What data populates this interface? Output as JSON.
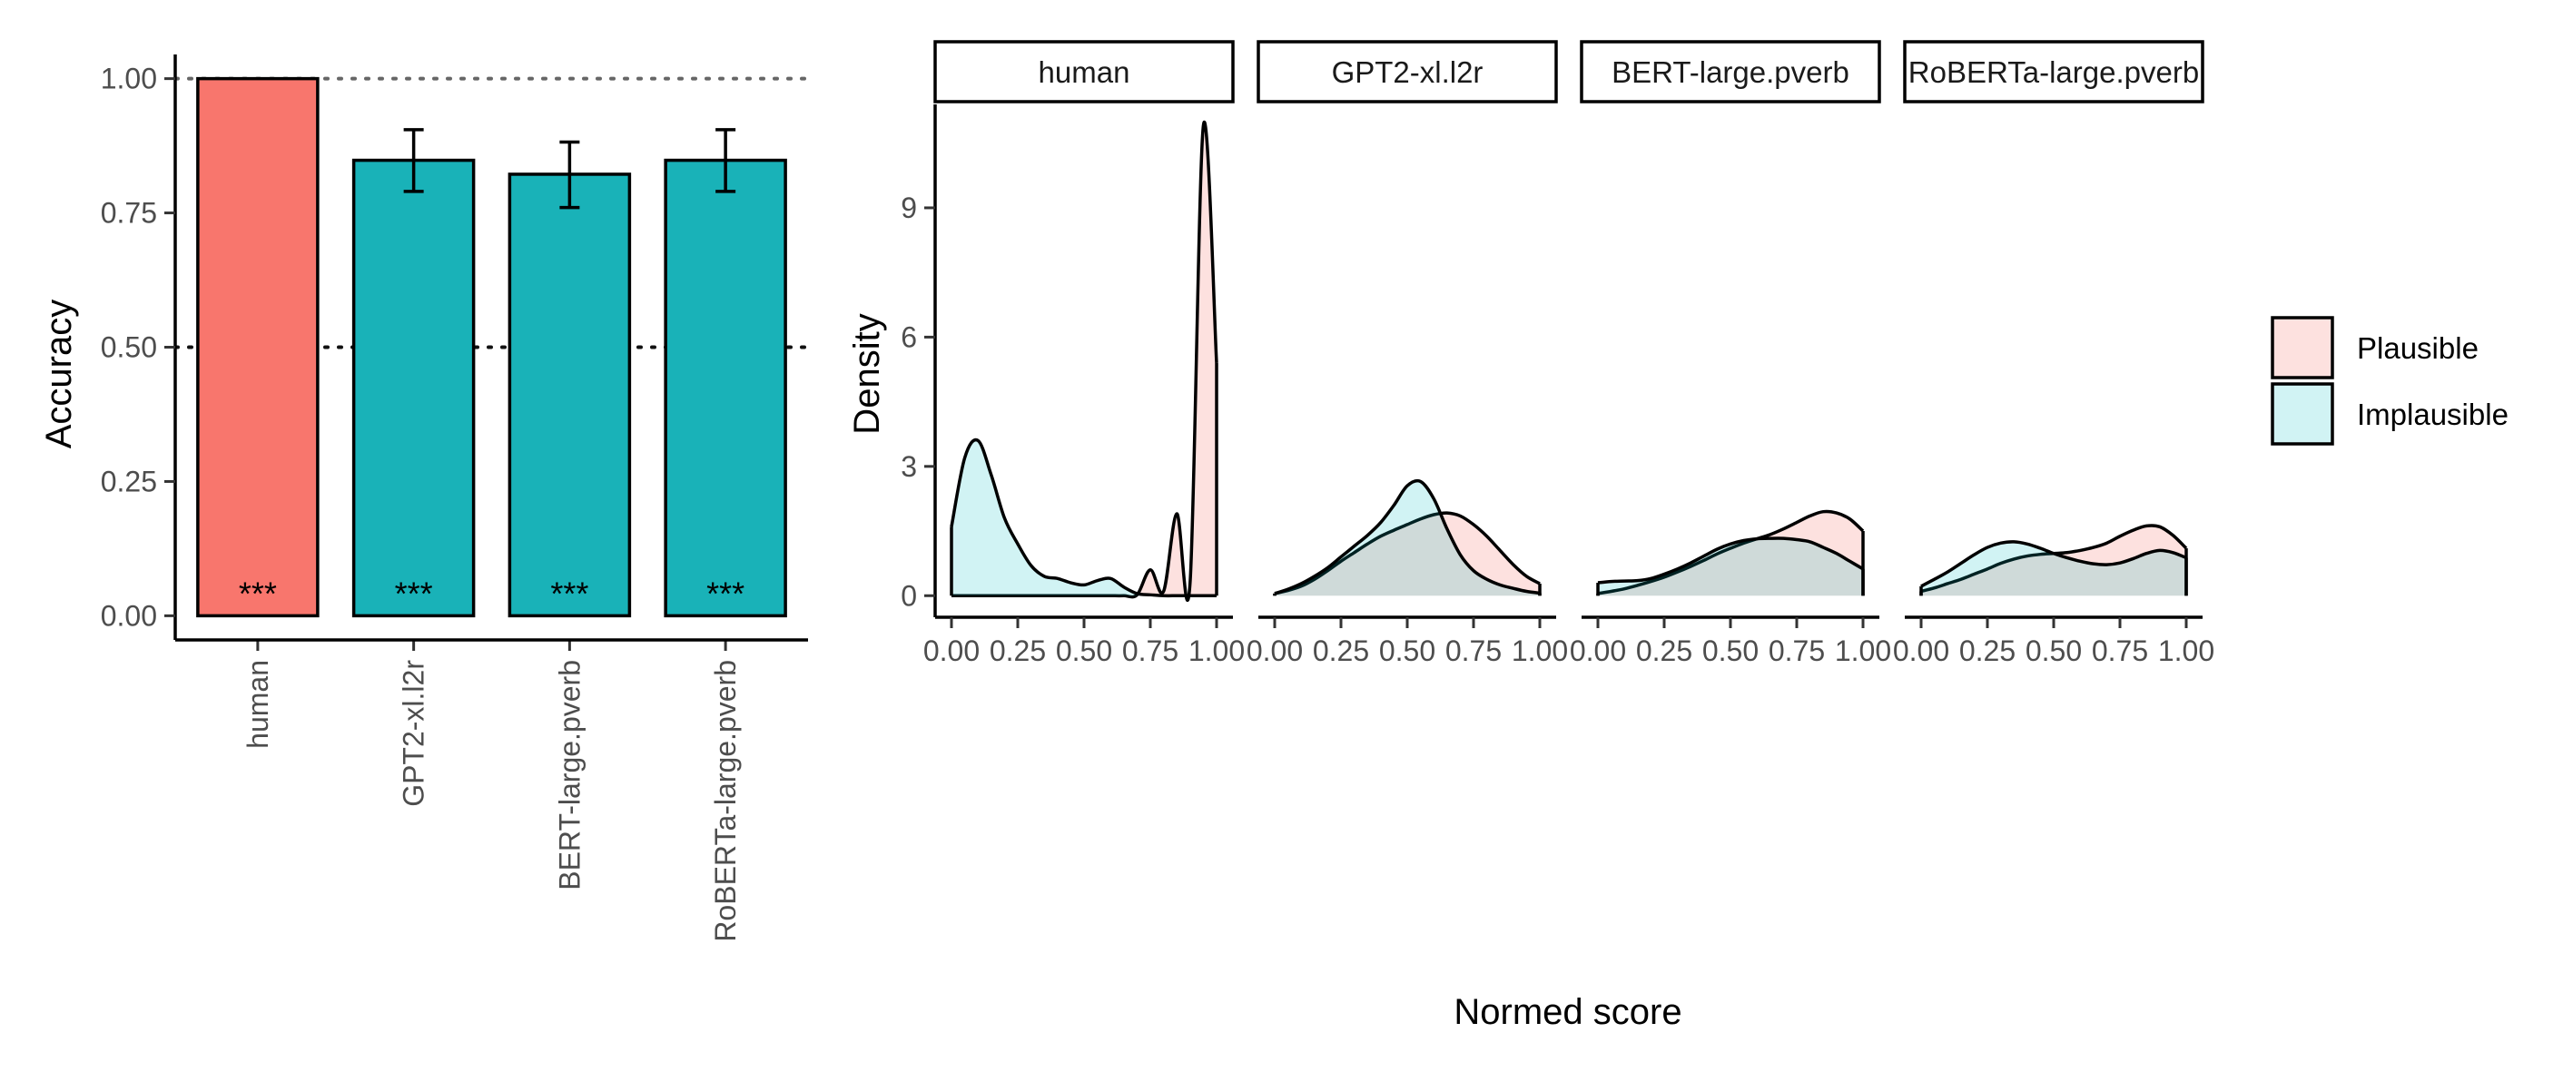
{
  "chart_data": [
    {
      "type": "bar",
      "categories": [
        "human",
        "GPT2-xl.l2r",
        "BERT-large.pverb",
        "RoBERTa-large.pverb"
      ],
      "values": [
        1.0,
        0.848,
        0.822,
        0.848
      ],
      "error_low": [
        1.0,
        0.79,
        0.76,
        0.79
      ],
      "error_high": [
        1.0,
        0.905,
        0.882,
        0.905
      ],
      "significance": [
        "***",
        "***",
        "***",
        "***"
      ],
      "bar_colors": [
        "#F8766D",
        "#19B2B8",
        "#19B2B8",
        "#19B2B8"
      ],
      "ylabel": "Accuracy",
      "xlabel": "",
      "ylim": [
        -0.045,
        1.045
      ],
      "yticks": [
        0.0,
        0.25,
        0.5,
        0.75,
        1.0
      ],
      "ytick_labels": [
        "0.00",
        "0.25",
        "0.50",
        "0.75",
        "1.00"
      ],
      "reference_lines": [
        1.0,
        0.5
      ]
    },
    {
      "type": "area",
      "panels": [
        "human",
        "GPT2-xl.l2r",
        "BERT-large.pverb",
        "RoBERTa-large.pverb"
      ],
      "xlabel": "Normed score",
      "ylabel": "Density",
      "xlim": [
        0,
        1
      ],
      "ylim": [
        -0.5,
        11.4
      ],
      "xticks": [
        0,
        0.25,
        0.5,
        0.75,
        1.0
      ],
      "xtick_labels": [
        "0.00",
        "0.25",
        "0.50",
        "0.75",
        "1.00"
      ],
      "yticks": [
        0,
        3,
        6,
        9
      ],
      "ytick_labels": [
        "0",
        "3",
        "6",
        "9"
      ],
      "legend": {
        "position": "right",
        "entries": [
          {
            "label": "Plausible",
            "color": "#F8766D"
          },
          {
            "label": "Implausible",
            "color": "#00BFC4"
          }
        ]
      },
      "series": [
        {
          "name": "Plausible",
          "x": [
            0,
            0.05,
            0.1,
            0.15,
            0.2,
            0.25,
            0.3,
            0.35,
            0.4,
            0.45,
            0.5,
            0.55,
            0.6,
            0.65,
            0.7,
            0.75,
            0.8,
            0.85,
            0.9,
            0.95,
            1.0
          ],
          "panel_values": [
            [
              0,
              0,
              0,
              0,
              0,
              0,
              0,
              0,
              0,
              0,
              0,
              0,
              0,
              0,
              0.02,
              0.6,
              0.1,
              1.9,
              0.3,
              10.9,
              5.4
            ],
            [
              0.05,
              0.12,
              0.22,
              0.38,
              0.58,
              0.8,
              1.0,
              1.2,
              1.38,
              1.52,
              1.65,
              1.78,
              1.88,
              1.92,
              1.85,
              1.65,
              1.38,
              1.05,
              0.72,
              0.45,
              0.28
            ],
            [
              0.05,
              0.1,
              0.16,
              0.24,
              0.33,
              0.43,
              0.55,
              0.68,
              0.82,
              0.97,
              1.1,
              1.22,
              1.32,
              1.42,
              1.55,
              1.7,
              1.85,
              1.95,
              1.92,
              1.78,
              1.5
            ],
            [
              0.1,
              0.18,
              0.28,
              0.38,
              0.5,
              0.62,
              0.75,
              0.85,
              0.92,
              0.96,
              0.98,
              1.0,
              1.05,
              1.12,
              1.22,
              1.38,
              1.52,
              1.62,
              1.6,
              1.4,
              1.1
            ]
          ]
        },
        {
          "name": "Implausible",
          "x": [
            0,
            0.05,
            0.1,
            0.15,
            0.2,
            0.25,
            0.3,
            0.35,
            0.4,
            0.45,
            0.5,
            0.55,
            0.6,
            0.65,
            0.7,
            0.75,
            0.8,
            0.85,
            0.9,
            0.95,
            1.0
          ],
          "panel_values": [
            [
              1.6,
              3.2,
              3.6,
              2.8,
              1.8,
              1.2,
              0.7,
              0.45,
              0.4,
              0.3,
              0.25,
              0.35,
              0.4,
              0.2,
              0.05,
              0.02,
              0,
              0,
              0,
              0,
              0
            ],
            [
              0.05,
              0.15,
              0.28,
              0.45,
              0.65,
              0.9,
              1.15,
              1.4,
              1.7,
              2.1,
              2.55,
              2.65,
              2.25,
              1.55,
              0.95,
              0.58,
              0.38,
              0.25,
              0.17,
              0.1,
              0.06
            ],
            [
              0.3,
              0.33,
              0.34,
              0.35,
              0.4,
              0.5,
              0.62,
              0.76,
              0.92,
              1.08,
              1.2,
              1.28,
              1.32,
              1.33,
              1.33,
              1.3,
              1.25,
              1.12,
              0.98,
              0.8,
              0.62
            ],
            [
              0.22,
              0.38,
              0.55,
              0.75,
              0.95,
              1.12,
              1.22,
              1.25,
              1.2,
              1.1,
              0.98,
              0.88,
              0.8,
              0.74,
              0.72,
              0.76,
              0.86,
              0.98,
              1.05,
              1.0,
              0.88
            ]
          ]
        }
      ]
    }
  ]
}
